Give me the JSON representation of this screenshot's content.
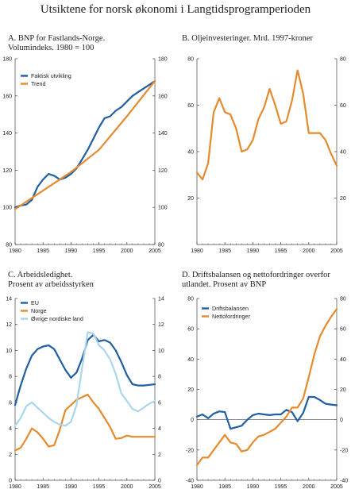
{
  "main_title": "Utsiktene for norsk økonomi i Langtidsprogramperioden",
  "colors": {
    "blue": "#1f5fa3",
    "orange": "#e68a2e",
    "lightblue": "#a9d6ea"
  },
  "chart_data": [
    {
      "id": "A",
      "type": "line",
      "title_line1": "A. BNP for Fastlands-Norge.",
      "title_line2": "Volumindeks. 1980 = 100",
      "xlim": [
        1980,
        2005
      ],
      "ylim": [
        80,
        180
      ],
      "xticks": [
        1980,
        1985,
        1990,
        1995,
        2000,
        2005
      ],
      "yticks": [
        80,
        100,
        120,
        140,
        160,
        180
      ],
      "grid": false,
      "legend": "top-left",
      "series": [
        {
          "name": "Faktisk utvikling",
          "color": "#1f5fa3",
          "x": [
            1980,
            1981,
            1982,
            1983,
            1984,
            1985,
            1986,
            1987,
            1988,
            1989,
            1990,
            1991,
            1992,
            1993,
            1994,
            1995,
            1996,
            1997,
            1998,
            1999,
            2000,
            2001,
            2002,
            2003,
            2004,
            2005
          ],
          "y": [
            100,
            101,
            101.5,
            104,
            111,
            115,
            118,
            117,
            115,
            116,
            118,
            121,
            126,
            131,
            137,
            143,
            148,
            149,
            152,
            154,
            157,
            160,
            162,
            164,
            166,
            168
          ]
        },
        {
          "name": "Trend",
          "color": "#e68a2e",
          "x": [
            1980,
            1985,
            1990,
            1995,
            2000,
            2005
          ],
          "y": [
            99,
            109,
            119,
            131,
            149,
            168
          ]
        }
      ]
    },
    {
      "id": "B",
      "type": "line",
      "title_line1": "B. Oljeinvesteringer. Mrd. 1997-kroner",
      "title_line2": "",
      "xlim": [
        1980,
        2005
      ],
      "ylim": [
        0,
        80
      ],
      "xticks": [
        1980,
        1985,
        1990,
        1995,
        2000,
        2005
      ],
      "yticks": [
        20,
        40,
        60,
        80
      ],
      "grid": false,
      "legend": "none",
      "series": [
        {
          "name": "",
          "color": "#e68a2e",
          "x": [
            1980,
            1981,
            1982,
            1983,
            1984,
            1985,
            1986,
            1987,
            1988,
            1989,
            1990,
            1991,
            1992,
            1993,
            1994,
            1995,
            1996,
            1997,
            1998,
            1999,
            2000,
            2001,
            2002,
            2003,
            2004,
            2005
          ],
          "y": [
            31,
            28,
            35,
            57,
            63,
            57,
            56,
            50,
            40,
            41,
            45,
            54,
            59,
            67,
            60,
            52,
            53,
            62,
            75,
            65,
            48,
            48,
            48,
            45,
            39,
            34
          ]
        }
      ]
    },
    {
      "id": "C",
      "type": "line",
      "title_line1": "C. Arbeidsledighet.",
      "title_line2": "Prosent av arbeidsstyrken",
      "xlim": [
        1980,
        2005
      ],
      "ylim": [
        0,
        14
      ],
      "xticks": [
        1980,
        1985,
        1990,
        1995,
        2000,
        2005
      ],
      "yticks": [
        0,
        2,
        4,
        6,
        8,
        10,
        12,
        14
      ],
      "grid": false,
      "legend": "top-left",
      "series": [
        {
          "name": "EU",
          "color": "#1f5fa3",
          "x": [
            1980,
            1981,
            1982,
            1983,
            1984,
            1985,
            1986,
            1987,
            1988,
            1989,
            1990,
            1991,
            1992,
            1993,
            1994,
            1995,
            1996,
            1997,
            1998,
            1999,
            2000,
            2001,
            2002,
            2003,
            2004,
            2005
          ],
          "y": [
            5.8,
            7.3,
            8.6,
            9.6,
            10.1,
            10.3,
            10.4,
            10.1,
            9.3,
            8.5,
            7.9,
            8.3,
            9.4,
            10.8,
            11.2,
            10.7,
            10.8,
            10.6,
            10.0,
            9.1,
            8.1,
            7.4,
            7.3,
            7.3,
            7.35,
            7.4
          ]
        },
        {
          "name": "Norge",
          "color": "#e68a2e",
          "x": [
            1980,
            1981,
            1982,
            1983,
            1984,
            1985,
            1986,
            1987,
            1988,
            1989,
            1990,
            1991,
            1992,
            1993,
            1994,
            1995,
            1996,
            1997,
            1998,
            1999,
            2000,
            2001,
            2002,
            2003,
            2004,
            2005
          ],
          "y": [
            2.3,
            2.5,
            3.2,
            4.0,
            3.7,
            3.2,
            2.6,
            2.7,
            3.9,
            5.4,
            5.8,
            6.2,
            6.4,
            6.6,
            6.0,
            5.5,
            4.8,
            4.1,
            3.2,
            3.25,
            3.45,
            3.35,
            3.35,
            3.35,
            3.35,
            3.35
          ]
        },
        {
          "name": "Øvrige nordiske land",
          "color": "#a9d6ea",
          "x": [
            1980,
            1981,
            1982,
            1983,
            1984,
            1985,
            1986,
            1987,
            1988,
            1989,
            1990,
            1991,
            1992,
            1993,
            1994,
            1995,
            1996,
            1997,
            1998,
            1999,
            2000,
            2001,
            2002,
            2003,
            2004,
            2005
          ],
          "y": [
            4.2,
            4.8,
            5.7,
            6.0,
            5.6,
            5.2,
            4.8,
            4.5,
            4.3,
            4.2,
            4.5,
            5.8,
            8.7,
            11.4,
            11.3,
            10.4,
            10.0,
            9.3,
            8.2,
            6.7,
            6.1,
            5.5,
            5.3,
            5.6,
            5.9,
            6.1
          ]
        }
      ]
    },
    {
      "id": "D",
      "type": "line",
      "title_line1": "D. Driftsbalansen og nettofordringer overfor",
      "title_line2": "utlandet. Prosent av BNP",
      "xlim": [
        1980,
        2005
      ],
      "ylim": [
        -40,
        80
      ],
      "xticks": [
        1980,
        1985,
        1990,
        1995,
        2000,
        2005
      ],
      "yticks": [
        -40,
        -20,
        0,
        20,
        40,
        60,
        80
      ],
      "grid": false,
      "legend": "top-left",
      "series": [
        {
          "name": "Driftsbalansen",
          "color": "#1f5fa3",
          "x": [
            1980,
            1981,
            1982,
            1983,
            1984,
            1985,
            1986,
            1987,
            1988,
            1989,
            1990,
            1991,
            1992,
            1993,
            1994,
            1995,
            1996,
            1997,
            1998,
            1999,
            2000,
            2001,
            2002,
            2003,
            2004,
            2005
          ],
          "y": [
            2,
            3.5,
            1,
            4,
            5.5,
            5,
            -6,
            -5,
            -4,
            0,
            3,
            4,
            3.5,
            3,
            3.5,
            3.5,
            6.5,
            5,
            -1,
            4.5,
            15,
            15,
            13,
            10.5,
            10,
            9.5
          ]
        },
        {
          "name": "Nettofordringer",
          "color": "#e68a2e",
          "x": [
            1980,
            1981,
            1982,
            1983,
            1984,
            1985,
            1986,
            1987,
            1988,
            1989,
            1990,
            1991,
            1992,
            1993,
            1994,
            1995,
            1996,
            1997,
            1998,
            1999,
            2000,
            2001,
            2002,
            2003,
            2004,
            2005
          ],
          "y": [
            -30,
            -25,
            -25,
            -20,
            -15,
            -10,
            -15,
            -16,
            -21,
            -20,
            -15,
            -11,
            -10,
            -8,
            -6,
            -2,
            2,
            8,
            8,
            14,
            28,
            43,
            55,
            62,
            68,
            73
          ]
        }
      ]
    }
  ]
}
